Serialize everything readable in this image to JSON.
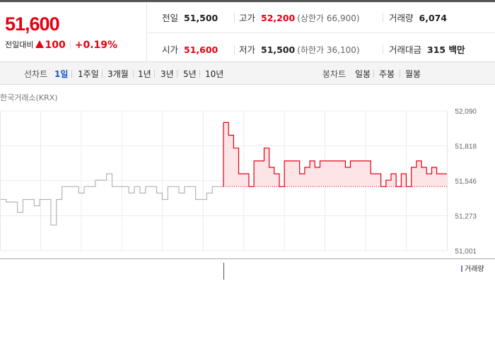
{
  "quote": {
    "price": "51,600",
    "change_label": "전일대비",
    "change_value": "100",
    "change_pct": "+0.19%"
  },
  "stats": {
    "prev_close": {
      "label": "전일",
      "value": "51,500"
    },
    "high": {
      "label": "고가",
      "value": "52,200",
      "sub": "(상한가 66,900)"
    },
    "volume": {
      "label": "거래량",
      "value": "6,074"
    },
    "open": {
      "label": "시가",
      "value": "51,600"
    },
    "low": {
      "label": "저가",
      "value": "51,500",
      "sub": "(하한가 36,100)"
    },
    "amount": {
      "label": "거래대금",
      "value": "315 백만"
    }
  },
  "tabs": {
    "line_label": "선차트",
    "line_items": [
      "1일",
      "1주일",
      "3개월",
      "1년",
      "3년",
      "5년",
      "10년"
    ],
    "line_active": "1일",
    "candle_label": "봉차트",
    "candle_items": [
      "일봉",
      "주봉",
      "월봉"
    ]
  },
  "source_label": "한국거래소(KRX)",
  "volume_legend": "거래량",
  "colors": {
    "up": "#e60012",
    "active_tab": "#1a56c8",
    "prev_day_line": "#b4b4b4",
    "fill": "#fde4e6"
  },
  "chart_data": {
    "type": "line",
    "y_ticks": [
      "52,090",
      "51,818",
      "51,546",
      "51,273",
      "51,001"
    ],
    "ylim": [
      51001,
      52090
    ],
    "grid": true,
    "reference_value": 51500,
    "series": [
      {
        "values": [
          51400,
          51380,
          51380,
          51300,
          51400,
          51400,
          51350,
          51400,
          51400,
          51200,
          51400,
          51500,
          51500,
          51500,
          51450,
          51500,
          51500,
          51550,
          51550,
          51600,
          51500,
          51500,
          51500,
          51450,
          51500,
          51450,
          51500,
          51500,
          51450,
          51400,
          51500,
          51500,
          51450,
          51500,
          51500,
          51400,
          51400,
          51450,
          51500,
          51500
        ]
      },
      {
        "values": [
          52000,
          51900,
          51800,
          51600,
          51600,
          51500,
          51700,
          51700,
          51800,
          51650,
          51600,
          51500,
          51700,
          51700,
          51700,
          51600,
          51650,
          51700,
          51650,
          51700,
          51700,
          51700,
          51700,
          51700,
          51650,
          51700,
          51700,
          51700,
          51700,
          51600,
          51600,
          51500,
          51550,
          51600,
          51500,
          51600,
          51500,
          51650,
          51700,
          51650,
          51600,
          51650,
          51600,
          51600
        ]
      }
    ]
  }
}
